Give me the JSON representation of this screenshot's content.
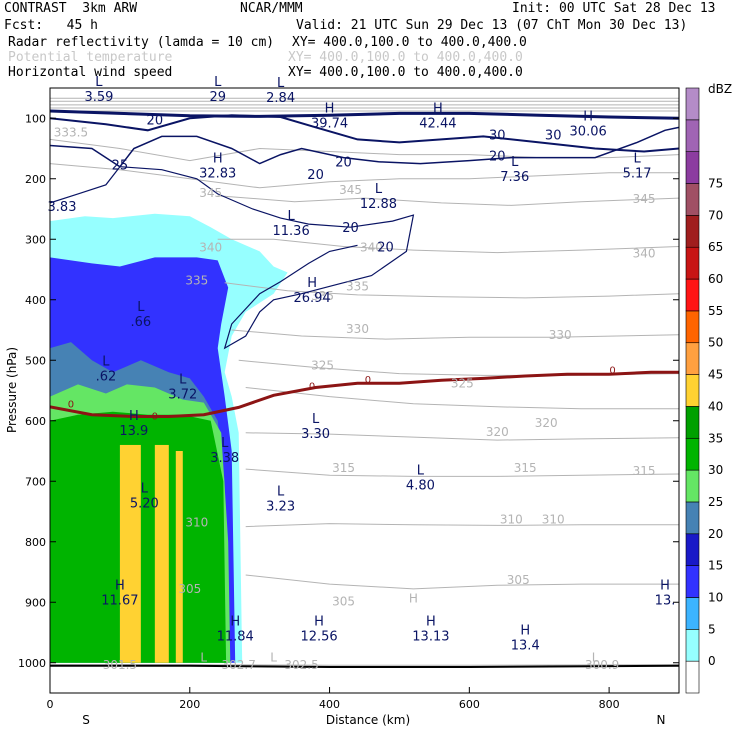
{
  "header": {
    "model": "CONTRAST  3km ARW",
    "org": "NCAR/MMM",
    "init": "Init: 00 UTC Sat 28 Dec 13",
    "fcst": "Fcst:   45 h",
    "valid": "Valid: 21 UTC Sun 29 Dec 13 (07 ChT Mon 30 Dec 13)",
    "fields": [
      {
        "name": "Radar reflectivity (lamda = 10 cm)",
        "xy": "XY= 400.0,100.0 to 400.0,400.0"
      },
      {
        "name": "Potential temperature",
        "xy": "XY= 400.0,100.0 to 400.0,400.0"
      },
      {
        "name": "Horizontal wind speed",
        "xy": "XY= 400.0,100.0 to 400.0,400.0"
      }
    ]
  },
  "colorbar": {
    "unit": "dBZ",
    "levels": [
      "0",
      "5",
      "10",
      "15",
      "20",
      "25",
      "30",
      "35",
      "40",
      "45",
      "50",
      "55",
      "60",
      "65",
      "70",
      "75"
    ],
    "colors": [
      "#ffffff",
      "#96ffff",
      "#3cb4ff",
      "#3232ff",
      "#1919c8",
      "#4682b4",
      "#64e664",
      "#00b400",
      "#00a000",
      "#ffd232",
      "#ffa040",
      "#ff6400",
      "#ff1414",
      "#c81414",
      "#a01e1e",
      "#a05064",
      "#8c3ca0",
      "#a064b4",
      "#b48cc8"
    ]
  },
  "chart_data": {
    "type": "contour",
    "xlabel": "Distance (km)",
    "ylabel": "Pressure (hPa)",
    "xlim": [
      0,
      900
    ],
    "ylim": [
      1050,
      50
    ],
    "xticks": [
      "0",
      "200",
      "400",
      "600",
      "800"
    ],
    "yticks": [
      "100",
      "200",
      "300",
      "400",
      "500",
      "600",
      "700",
      "800",
      "900",
      "1000"
    ],
    "x_endpoints": {
      "left": "S",
      "right": "N"
    },
    "reflectivity_shading": [
      {
        "dbz": "5",
        "color": "#96ffff",
        "outline": [
          [
            0,
            270
          ],
          [
            50,
            262
          ],
          [
            90,
            265
          ],
          [
            150,
            258
          ],
          [
            200,
            262
          ],
          [
            230,
            280
          ],
          [
            260,
            300
          ],
          [
            300,
            320
          ],
          [
            320,
            345
          ],
          [
            340,
            355
          ],
          [
            320,
            390
          ],
          [
            280,
            420
          ],
          [
            260,
            460
          ],
          [
            250,
            520
          ],
          [
            260,
            560
          ],
          [
            270,
            620
          ],
          [
            275,
            1000
          ],
          [
            0,
            1000
          ]
        ]
      },
      {
        "dbz": "15",
        "color": "#3232ff",
        "outline": [
          [
            0,
            330
          ],
          [
            60,
            340
          ],
          [
            100,
            345
          ],
          [
            150,
            330
          ],
          [
            210,
            330
          ],
          [
            240,
            335
          ],
          [
            255,
            380
          ],
          [
            245,
            440
          ],
          [
            240,
            480
          ],
          [
            250,
            560
          ],
          [
            260,
            650
          ],
          [
            265,
            1000
          ],
          [
            0,
            1000
          ]
        ]
      },
      {
        "dbz": "25",
        "color": "#4682b4",
        "outline": [
          [
            0,
            480
          ],
          [
            30,
            470
          ],
          [
            60,
            500
          ],
          [
            90,
            520
          ],
          [
            130,
            500
          ],
          [
            170,
            520
          ],
          [
            200,
            530
          ],
          [
            220,
            560
          ],
          [
            240,
            600
          ],
          [
            250,
            700
          ],
          [
            255,
            1000
          ],
          [
            0,
            1000
          ]
        ]
      },
      {
        "dbz": "30",
        "color": "#64e664",
        "outline": [
          [
            0,
            560
          ],
          [
            40,
            540
          ],
          [
            80,
            555
          ],
          [
            110,
            540
          ],
          [
            150,
            545
          ],
          [
            190,
            565
          ],
          [
            220,
            570
          ],
          [
            245,
            620
          ],
          [
            255,
            800
          ],
          [
            258,
            1000
          ],
          [
            0,
            1000
          ]
        ]
      },
      {
        "dbz": "35",
        "color": "#00b400",
        "outline": [
          [
            0,
            600
          ],
          [
            40,
            590
          ],
          [
            90,
            585
          ],
          [
            140,
            590
          ],
          [
            190,
            590
          ],
          [
            230,
            600
          ],
          [
            248,
            700
          ],
          [
            252,
            1000
          ],
          [
            0,
            1000
          ]
        ]
      }
    ],
    "reflectivity_yellow_columns": [
      {
        "x": [
          100,
          130
        ],
        "top": 640
      },
      {
        "x": [
          150,
          170
        ],
        "top": 640
      },
      {
        "x": [
          180,
          190
        ],
        "top": 650
      }
    ],
    "theta_labels": [
      {
        "x": 30,
        "p": 130,
        "text": "333.5"
      },
      {
        "x": 230,
        "p": 230,
        "text": "345"
      },
      {
        "x": 430,
        "p": 225,
        "text": "345"
      },
      {
        "x": 850,
        "p": 240,
        "text": "345"
      },
      {
        "x": 230,
        "p": 320,
        "text": "340"
      },
      {
        "x": 460,
        "p": 320,
        "text": "340"
      },
      {
        "x": 850,
        "p": 330,
        "text": "340"
      },
      {
        "x": 210,
        "p": 375,
        "text": "335"
      },
      {
        "x": 440,
        "p": 385,
        "text": "335"
      },
      {
        "x": 390,
        "p": 400,
        "text": "335"
      },
      {
        "x": 440,
        "p": 455,
        "text": "330"
      },
      {
        "x": 730,
        "p": 465,
        "text": "330"
      },
      {
        "x": 390,
        "p": 515,
        "text": "325"
      },
      {
        "x": 590,
        "p": 545,
        "text": "325"
      },
      {
        "x": 710,
        "p": 610,
        "text": "320"
      },
      {
        "x": 640,
        "p": 625,
        "text": "320"
      },
      {
        "x": 420,
        "p": 685,
        "text": "315"
      },
      {
        "x": 680,
        "p": 685,
        "text": "315"
      },
      {
        "x": 850,
        "p": 690,
        "text": "315"
      },
      {
        "x": 210,
        "p": 775,
        "text": "310"
      },
      {
        "x": 660,
        "p": 770,
        "text": "310"
      },
      {
        "x": 720,
        "p": 770,
        "text": "310"
      },
      {
        "x": 200,
        "p": 885,
        "text": "305"
      },
      {
        "x": 420,
        "p": 905,
        "text": "305"
      },
      {
        "x": 670,
        "p": 870,
        "text": "305"
      },
      {
        "x": 100,
        "p": 1010,
        "text": "301.5"
      },
      {
        "x": 270,
        "p": 1010,
        "text": "302.7"
      },
      {
        "x": 360,
        "p": 1010,
        "text": "302.5"
      },
      {
        "x": 790,
        "p": 1010,
        "text": "300.9"
      }
    ],
    "theta_extrema": [
      {
        "x": 220,
        "p": 998,
        "kind": "L"
      },
      {
        "x": 320,
        "p": 998,
        "kind": "L"
      },
      {
        "x": 780,
        "p": 998,
        "kind": "L"
      },
      {
        "x": 520,
        "p": 900,
        "kind": "H"
      }
    ],
    "wind_labels": [
      {
        "x": 150,
        "p": 110,
        "text": "20"
      },
      {
        "x": 100,
        "p": 185,
        "text": "25"
      },
      {
        "x": 380,
        "p": 200,
        "text": "20"
      },
      {
        "x": 420,
        "p": 180,
        "text": "20"
      },
      {
        "x": 640,
        "p": 170,
        "text": "20"
      },
      {
        "x": 720,
        "p": 135,
        "text": "30"
      },
      {
        "x": 640,
        "p": 135,
        "text": "30"
      },
      {
        "x": 430,
        "p": 288,
        "text": "20"
      },
      {
        "x": 480,
        "p": 320,
        "text": "20"
      }
    ],
    "wind_extrema": [
      {
        "x": 70,
        "p": 68,
        "kind": "L",
        "value": "3.59"
      },
      {
        "x": 240,
        "p": 68,
        "kind": "L",
        "value": "29"
      },
      {
        "x": 330,
        "p": 70,
        "kind": "L",
        "value": "2.84"
      },
      {
        "x": 400,
        "p": 112,
        "kind": "H",
        "value": "39.74"
      },
      {
        "x": 555,
        "p": 112,
        "kind": "H",
        "value": "42.44"
      },
      {
        "x": 770,
        "p": 125,
        "kind": "H",
        "value": "30.06"
      },
      {
        "x": 240,
        "p": 195,
        "kind": "H",
        "value": "32.83"
      },
      {
        "x": 10,
        "p": 250,
        "kind": "",
        "value": "3.83"
      },
      {
        "x": 665,
        "p": 200,
        "kind": "L",
        "value": "7.36"
      },
      {
        "x": 840,
        "p": 195,
        "kind": "L",
        "value": "5.17"
      },
      {
        "x": 470,
        "p": 245,
        "kind": "L",
        "value": "12.88"
      },
      {
        "x": 345,
        "p": 290,
        "kind": "L",
        "value": "11.36"
      },
      {
        "x": 375,
        "p": 400,
        "kind": "H",
        "value": "26.94"
      },
      {
        "x": 130,
        "p": 440,
        "kind": "L",
        "value": ".66"
      },
      {
        "x": 80,
        "p": 530,
        "kind": "L",
        "value": ".62"
      },
      {
        "x": 190,
        "p": 560,
        "kind": "L",
        "value": "3.72"
      },
      {
        "x": 120,
        "p": 620,
        "kind": "H",
        "value": "13.9"
      },
      {
        "x": 250,
        "p": 665,
        "kind": "L",
        "value": "3.38"
      },
      {
        "x": 380,
        "p": 625,
        "kind": "L",
        "value": "3.30"
      },
      {
        "x": 530,
        "p": 710,
        "kind": "L",
        "value": "4.80"
      },
      {
        "x": 330,
        "p": 745,
        "kind": "L",
        "value": "3.23"
      },
      {
        "x": 135,
        "p": 740,
        "kind": "L",
        "value": "5.20"
      },
      {
        "x": 100,
        "p": 900,
        "kind": "H",
        "value": "11.67"
      },
      {
        "x": 265,
        "p": 960,
        "kind": "H",
        "value": "11.84"
      },
      {
        "x": 385,
        "p": 960,
        "kind": "H",
        "value": "12.56"
      },
      {
        "x": 545,
        "p": 960,
        "kind": "H",
        "value": "13.13"
      },
      {
        "x": 680,
        "p": 975,
        "kind": "H",
        "value": "13.4"
      },
      {
        "x": 880,
        "p": 900,
        "kind": "H",
        "value": "13."
      }
    ],
    "zero_line_labels": [
      {
        "x": 30,
        "p": 578,
        "text": "0"
      },
      {
        "x": 150,
        "p": 598,
        "text": "0"
      },
      {
        "x": 375,
        "p": 548,
        "text": "0"
      },
      {
        "x": 455,
        "p": 538,
        "text": "0"
      },
      {
        "x": 805,
        "p": 522,
        "text": "0"
      }
    ],
    "zero_line": [
      [
        0,
        577
      ],
      [
        60,
        590
      ],
      [
        120,
        593
      ],
      [
        170,
        593
      ],
      [
        220,
        590
      ],
      [
        270,
        578
      ],
      [
        320,
        558
      ],
      [
        380,
        545
      ],
      [
        440,
        538
      ],
      [
        500,
        538
      ],
      [
        560,
        533
      ],
      [
        620,
        530
      ],
      [
        680,
        526
      ],
      [
        740,
        523
      ],
      [
        800,
        523
      ],
      [
        860,
        520
      ],
      [
        900,
        520
      ]
    ],
    "surface_line": [
      [
        0,
        1005
      ],
      [
        200,
        1005
      ],
      [
        400,
        1007
      ],
      [
        600,
        1007
      ],
      [
        900,
        1005
      ]
    ],
    "wind_contours": [
      {
        "width": 3,
        "points": [
          [
            0,
            88
          ],
          [
            100,
            92
          ],
          [
            200,
            96
          ],
          [
            300,
            97
          ],
          [
            400,
            95
          ],
          [
            500,
            92
          ],
          [
            600,
            92
          ],
          [
            700,
            95
          ],
          [
            800,
            98
          ],
          [
            900,
            100
          ]
        ]
      },
      {
        "width": 2,
        "points": [
          [
            0,
            100
          ],
          [
            80,
            110
          ],
          [
            140,
            120
          ],
          [
            200,
            100
          ],
          [
            260,
            95
          ],
          [
            330,
            98
          ],
          [
            380,
            115
          ],
          [
            440,
            135
          ],
          [
            500,
            140
          ],
          [
            560,
            135
          ],
          [
            620,
            130
          ],
          [
            700,
            140
          ],
          [
            780,
            150
          ],
          [
            850,
            155
          ],
          [
            900,
            150
          ]
        ]
      },
      {
        "width": 1.5,
        "points": [
          [
            0,
            145
          ],
          [
            60,
            150
          ],
          [
            100,
            180
          ],
          [
            120,
            150
          ],
          [
            160,
            130
          ],
          [
            210,
            130
          ],
          [
            260,
            150
          ],
          [
            300,
            175
          ],
          [
            330,
            160
          ],
          [
            360,
            150
          ],
          [
            420,
            165
          ],
          [
            470,
            172
          ],
          [
            530,
            175
          ],
          [
            600,
            170
          ],
          [
            660,
            165
          ],
          [
            720,
            165
          ],
          [
            780,
            165
          ],
          [
            840,
            140
          ],
          [
            880,
            120
          ],
          [
            900,
            115
          ]
        ]
      },
      {
        "width": 1.2,
        "points": [
          [
            0,
            240
          ],
          [
            40,
            225
          ],
          [
            80,
            210
          ],
          [
            100,
            180
          ],
          [
            160,
            185
          ],
          [
            210,
            200
          ],
          [
            240,
            225
          ],
          [
            290,
            250
          ],
          [
            330,
            265
          ],
          [
            370,
            275
          ],
          [
            430,
            280
          ],
          [
            490,
            270
          ],
          [
            520,
            260
          ],
          [
            510,
            320
          ],
          [
            460,
            360
          ],
          [
            410,
            375
          ],
          [
            360,
            390
          ],
          [
            320,
            400
          ],
          [
            300,
            420
          ],
          [
            280,
            460
          ],
          [
            250,
            480
          ],
          [
            260,
            440
          ],
          [
            300,
            390
          ],
          [
            330,
            370
          ],
          [
            370,
            340
          ],
          [
            400,
            320
          ],
          [
            440,
            310
          ]
        ]
      }
    ]
  }
}
